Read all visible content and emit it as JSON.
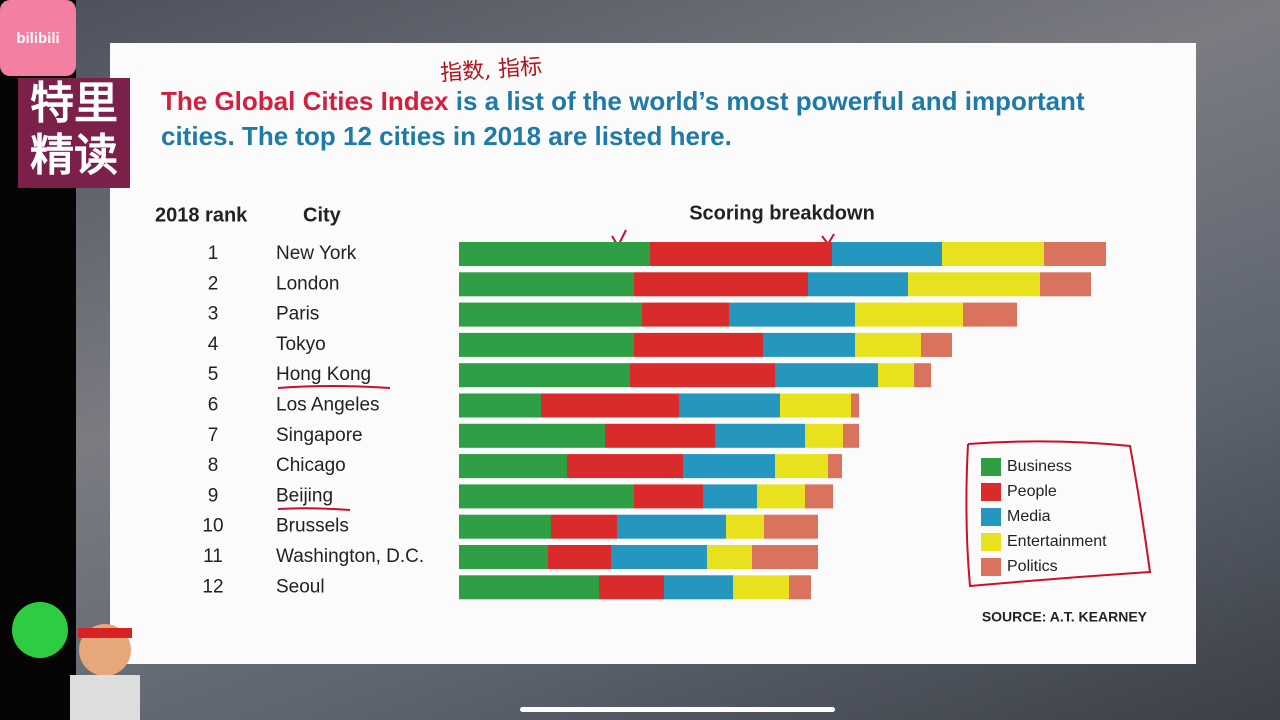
{
  "channel": {
    "logo": "bilibili",
    "name_line1": "特里",
    "name_line2": "精读"
  },
  "chart_data": {
    "type": "bar",
    "orientation": "horizontal",
    "stacked": true,
    "title_highlight": "The Global Cities Index",
    "title": "is a list of the world’s most powerful and important cities. The top 12 cities in 2018 are listed here.",
    "handwritten_note": "指数, 指标",
    "rank_header": "2018 rank",
    "city_header": "City",
    "breakdown_header": "Scoring breakdown",
    "ranks": [
      1,
      2,
      3,
      4,
      5,
      6,
      7,
      8,
      9,
      10,
      11,
      12
    ],
    "categories": [
      "New York",
      "London",
      "Paris",
      "Tokyo",
      "Hong Kong",
      "Los Angeles",
      "Singapore",
      "Chicago",
      "Beijing",
      "Brussels",
      "Washington, D.C.",
      "Seoul"
    ],
    "series": [
      {
        "name": "Business",
        "color": "#2f9e44",
        "values": [
          191,
          175,
          183,
          175,
          171,
          82,
          146,
          108,
          175,
          92,
          89,
          140
        ]
      },
      {
        "name": "People",
        "color": "#d92b2b",
        "values": [
          182,
          174,
          87,
          129,
          145,
          138,
          110,
          116,
          69,
          66,
          63,
          65
        ]
      },
      {
        "name": "Media",
        "color": "#2596be",
        "values": [
          110,
          100,
          126,
          92,
          103,
          101,
          90,
          92,
          54,
          109,
          96,
          69
        ]
      },
      {
        "name": "Entertainment",
        "color": "#e8e21e",
        "values": [
          102,
          132,
          108,
          66,
          36,
          71,
          38,
          53,
          48,
          38,
          45,
          56
        ]
      },
      {
        "name": "Politics",
        "color": "#d9735e",
        "values": [
          62,
          51,
          54,
          31,
          17,
          8,
          16,
          14,
          28,
          54,
          66,
          22
        ]
      }
    ],
    "source": "SOURCE: A.T. KEARNEY"
  }
}
